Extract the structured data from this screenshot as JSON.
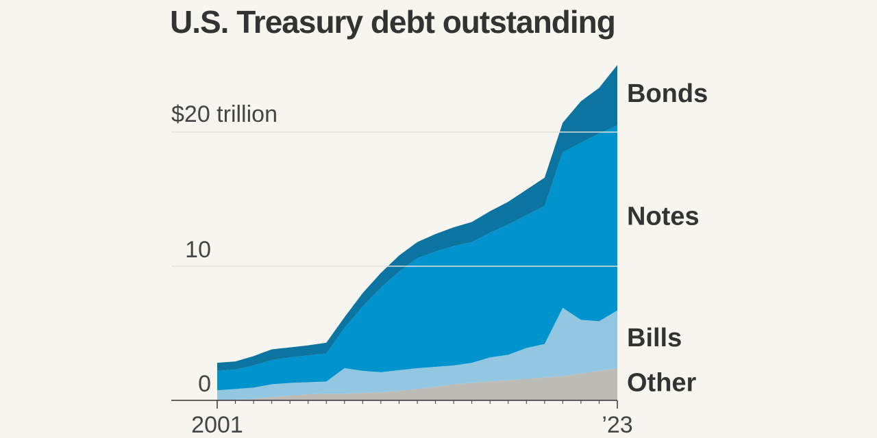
{
  "chart_data": {
    "type": "stacked_area",
    "title": "U.S. Treasury debt outstanding",
    "x": [
      2001,
      2002,
      2003,
      2004,
      2005,
      2006,
      2007,
      2008,
      2009,
      2010,
      2011,
      2012,
      2013,
      2014,
      2015,
      2016,
      2017,
      2018,
      2019,
      2020,
      2021,
      2022,
      2023
    ],
    "xlim": [
      2001,
      2023
    ],
    "xticks": [
      2001,
      {
        "value": 2023,
        "label": "’23"
      }
    ],
    "ylim": [
      0,
      25
    ],
    "yticks": [
      0,
      10,
      {
        "value": 20,
        "label": "$20 trillion"
      }
    ],
    "grid": true,
    "series": [
      {
        "name": "Other",
        "color": "#bdbbb6",
        "values": [
          0.05,
          0.05,
          0.1,
          0.25,
          0.35,
          0.45,
          0.5,
          0.5,
          0.55,
          0.6,
          0.7,
          0.85,
          1.0,
          1.2,
          1.3,
          1.4,
          1.5,
          1.6,
          1.7,
          1.8,
          2.0,
          2.2,
          2.4
        ]
      },
      {
        "name": "Bills",
        "color": "#93c6e1",
        "values": [
          0.7,
          0.8,
          0.85,
          0.95,
          0.95,
          0.9,
          0.9,
          1.9,
          1.65,
          1.5,
          1.55,
          1.55,
          1.5,
          1.4,
          1.5,
          1.8,
          1.9,
          2.3,
          2.5,
          5.1,
          4.0,
          3.7,
          4.3
        ]
      },
      {
        "name": "Notes",
        "color": "#0093cd",
        "values": [
          1.45,
          1.45,
          1.65,
          1.8,
          1.9,
          2.0,
          2.1,
          3.0,
          4.8,
          6.3,
          7.35,
          8.2,
          8.6,
          8.9,
          9.0,
          9.3,
          9.7,
          9.9,
          10.3,
          11.6,
          13.2,
          14.0,
          13.8
        ]
      },
      {
        "name": "Bonds",
        "color": "#0b74a1",
        "values": [
          0.6,
          0.6,
          0.7,
          0.8,
          0.75,
          0.75,
          0.8,
          0.8,
          1.0,
          1.1,
          1.2,
          1.2,
          1.3,
          1.4,
          1.5,
          1.6,
          1.7,
          1.9,
          2.1,
          2.2,
          3.1,
          3.4,
          4.5
        ]
      }
    ]
  }
}
